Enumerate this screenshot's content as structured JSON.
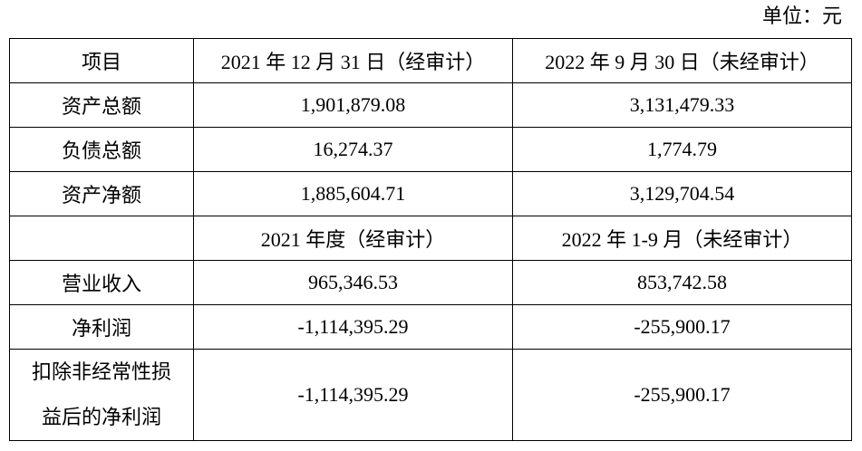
{
  "unit": "单位：元",
  "table": {
    "header": [
      "项目",
      "2021 年 12 月 31 日（经审计）",
      "2022 年 9 月 30 日（未经审计）"
    ],
    "rows": [
      [
        "资产总额",
        "1,901,879.08",
        "3,131,479.33"
      ],
      [
        "负债总额",
        "16,274.37",
        "1,774.79"
      ],
      [
        "资产净额",
        "1,885,604.71",
        "3,129,704.54"
      ]
    ],
    "subheader": [
      "2021 年度（经审计）",
      "2022 年 1-9 月（未经审计）"
    ],
    "rows2": [
      [
        "营业收入",
        "965,346.53",
        "853,742.58"
      ],
      [
        "净利润",
        "-1,114,395.29",
        "-255,900.17"
      ],
      [
        "扣除非经常性损益后的净利润",
        "-1,114,395.29",
        "-255,900.17"
      ]
    ]
  }
}
